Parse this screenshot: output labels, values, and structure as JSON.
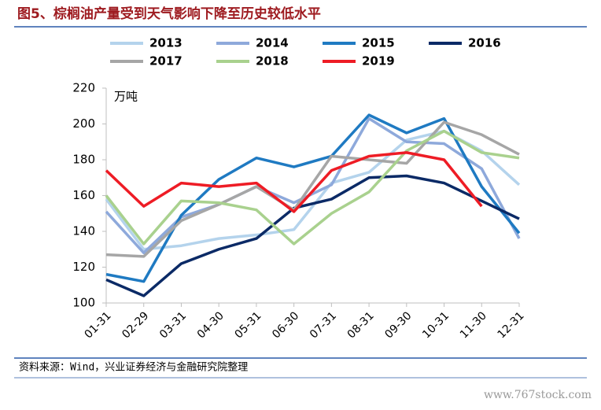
{
  "chart_data": {
    "type": "line",
    "title": "图5、棕榈油产量受到天气影响下降至历史较低水平",
    "y_label": "万吨",
    "categories": [
      "01-31",
      "02-29",
      "03-31",
      "04-30",
      "05-31",
      "06-30",
      "07-31",
      "08-31",
      "09-30",
      "10-31",
      "11-30",
      "12-31"
    ],
    "series": [
      {
        "name": "2013",
        "color": "#b4d3ec",
        "values": [
          158,
          130,
          132,
          136,
          138,
          141,
          167,
          173,
          191,
          196,
          185,
          166
        ]
      },
      {
        "name": "2014",
        "color": "#8ea9db",
        "values": [
          151,
          128,
          148,
          155,
          165,
          156,
          166,
          203,
          190,
          189,
          175,
          136
        ]
      },
      {
        "name": "2015",
        "color": "#1f7ac2",
        "values": [
          116,
          112,
          149,
          169,
          181,
          176,
          182,
          205,
          195,
          203,
          165,
          139
        ]
      },
      {
        "name": "2016",
        "color": "#0b2a66",
        "values": [
          113,
          104,
          122,
          130,
          136,
          153,
          158,
          170,
          171,
          167,
          157,
          147
        ]
      },
      {
        "name": "2017",
        "color": "#a6a6a6",
        "values": [
          127,
          126,
          146,
          155,
          165,
          152,
          182,
          180,
          178,
          201,
          194,
          183
        ]
      },
      {
        "name": "2018",
        "color": "#a9d18e",
        "values": [
          160,
          133,
          157,
          156,
          152,
          133,
          150,
          162,
          185,
          196,
          184,
          181
        ]
      },
      {
        "name": "2019",
        "color": "#ee1c25",
        "values": [
          174,
          154,
          167,
          165,
          167,
          151,
          174,
          182,
          184,
          180,
          154,
          null
        ]
      }
    ],
    "ylim": [
      100,
      220
    ],
    "yticks": [
      100,
      120,
      140,
      160,
      180,
      200,
      220
    ],
    "grid": false,
    "source": "资料来源：Wind，兴业证券经济与金融研究院整理",
    "watermark": "www.767stock.com"
  }
}
